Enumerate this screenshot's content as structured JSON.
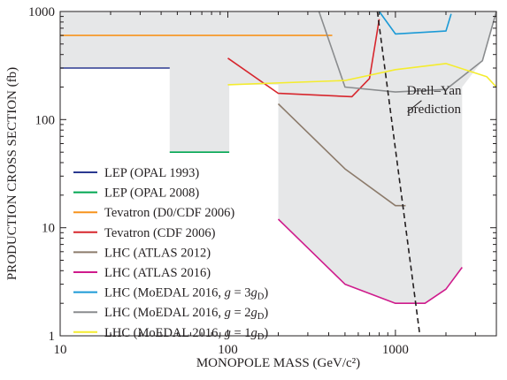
{
  "chart_data": {
    "type": "line",
    "xlabel": "MONOPOLE MASS (GeV/c²)",
    "ylabel": "PRODUCTION CROSS SECTION (fb)",
    "xscale": "log",
    "yscale": "log",
    "xlim": [
      10,
      4000
    ],
    "ylim": [
      1,
      1000
    ],
    "x_ticks": [
      {
        "value": 10,
        "label": "10"
      },
      {
        "value": 100,
        "label": "100"
      },
      {
        "value": 1000,
        "label": "1000"
      }
    ],
    "y_ticks": [
      {
        "value": 1,
        "label": "1"
      },
      {
        "value": 10,
        "label": "10"
      },
      {
        "value": 100,
        "label": "100"
      },
      {
        "value": 1000,
        "label": "1000"
      }
    ],
    "grid": false,
    "legend_position": "bottom-left",
    "series": [
      {
        "name": "LEP (OPAL 1993)",
        "color": "#2b3990",
        "x": [
          10,
          45
        ],
        "y": [
          300,
          300
        ]
      },
      {
        "name": "LEP (OPAL 2008)",
        "color": "#00a651",
        "x": [
          45,
          102
        ],
        "y": [
          50,
          50
        ]
      },
      {
        "name": "Tevatron (D0/CDF 2006)",
        "color": "#f7941d",
        "x": [
          10,
          420
        ],
        "y": [
          600,
          600
        ]
      },
      {
        "name": "Tevatron (CDF 2006)",
        "color": "#d7262d",
        "x": [
          100,
          200,
          550,
          700,
          800
        ],
        "y": [
          370,
          175,
          163,
          240,
          850
        ]
      },
      {
        "name": "LHC (ATLAS 2012)",
        "color": "#8c7b6b",
        "x": [
          200,
          500,
          1000,
          1150
        ],
        "y": [
          140,
          35,
          16,
          16
        ]
      },
      {
        "name": "LHC (ATLAS 2016)",
        "color": "#cf1b8c",
        "x": [
          200,
          500,
          1000,
          1200,
          1500,
          2000,
          2500
        ],
        "y": [
          12,
          3,
          2,
          2,
          2,
          2.7,
          4.3
        ]
      },
      {
        "name": "LHC (MoEDAL 2016, g = 3gD)",
        "color": "#1b9ad6",
        "x": [
          800,
          1000,
          2000,
          2150
        ],
        "y": [
          1000,
          620,
          660,
          950
        ]
      },
      {
        "name": "LHC (MoEDAL 2016, g = 2gD)",
        "color": "#8a8c8e",
        "x": [
          350,
          500,
          1000,
          2000,
          3300,
          4000
        ],
        "y": [
          1000,
          200,
          180,
          190,
          350,
          1000
        ]
      },
      {
        "name": "LHC (MoEDAL 2016, g = 1gD)",
        "color": "#f4ec2e",
        "x": [
          100,
          500,
          1000,
          2000,
          3500,
          4000
        ],
        "y": [
          210,
          230,
          290,
          330,
          250,
          200
        ]
      }
    ],
    "theory_curve": {
      "x": [
        780,
        1400
      ],
      "y": [
        1000,
        1
      ]
    },
    "excluded_region": {
      "x": [
        10,
        45,
        45,
        102,
        102,
        200,
        200,
        500,
        1000,
        1200,
        1500,
        2000,
        2500,
        2500,
        3300,
        4000,
        4000,
        10
      ],
      "y": [
        300,
        300,
        50,
        50,
        210,
        210,
        12,
        3,
        2,
        2,
        2,
        2.7,
        4.3,
        200,
        350,
        1000,
        1000,
        1000
      ]
    },
    "annotations": [
      {
        "text": "Drell–Yan",
        "x": 1700,
        "y": 170
      },
      {
        "text": "prediction",
        "x": 1700,
        "y": 115
      }
    ]
  }
}
